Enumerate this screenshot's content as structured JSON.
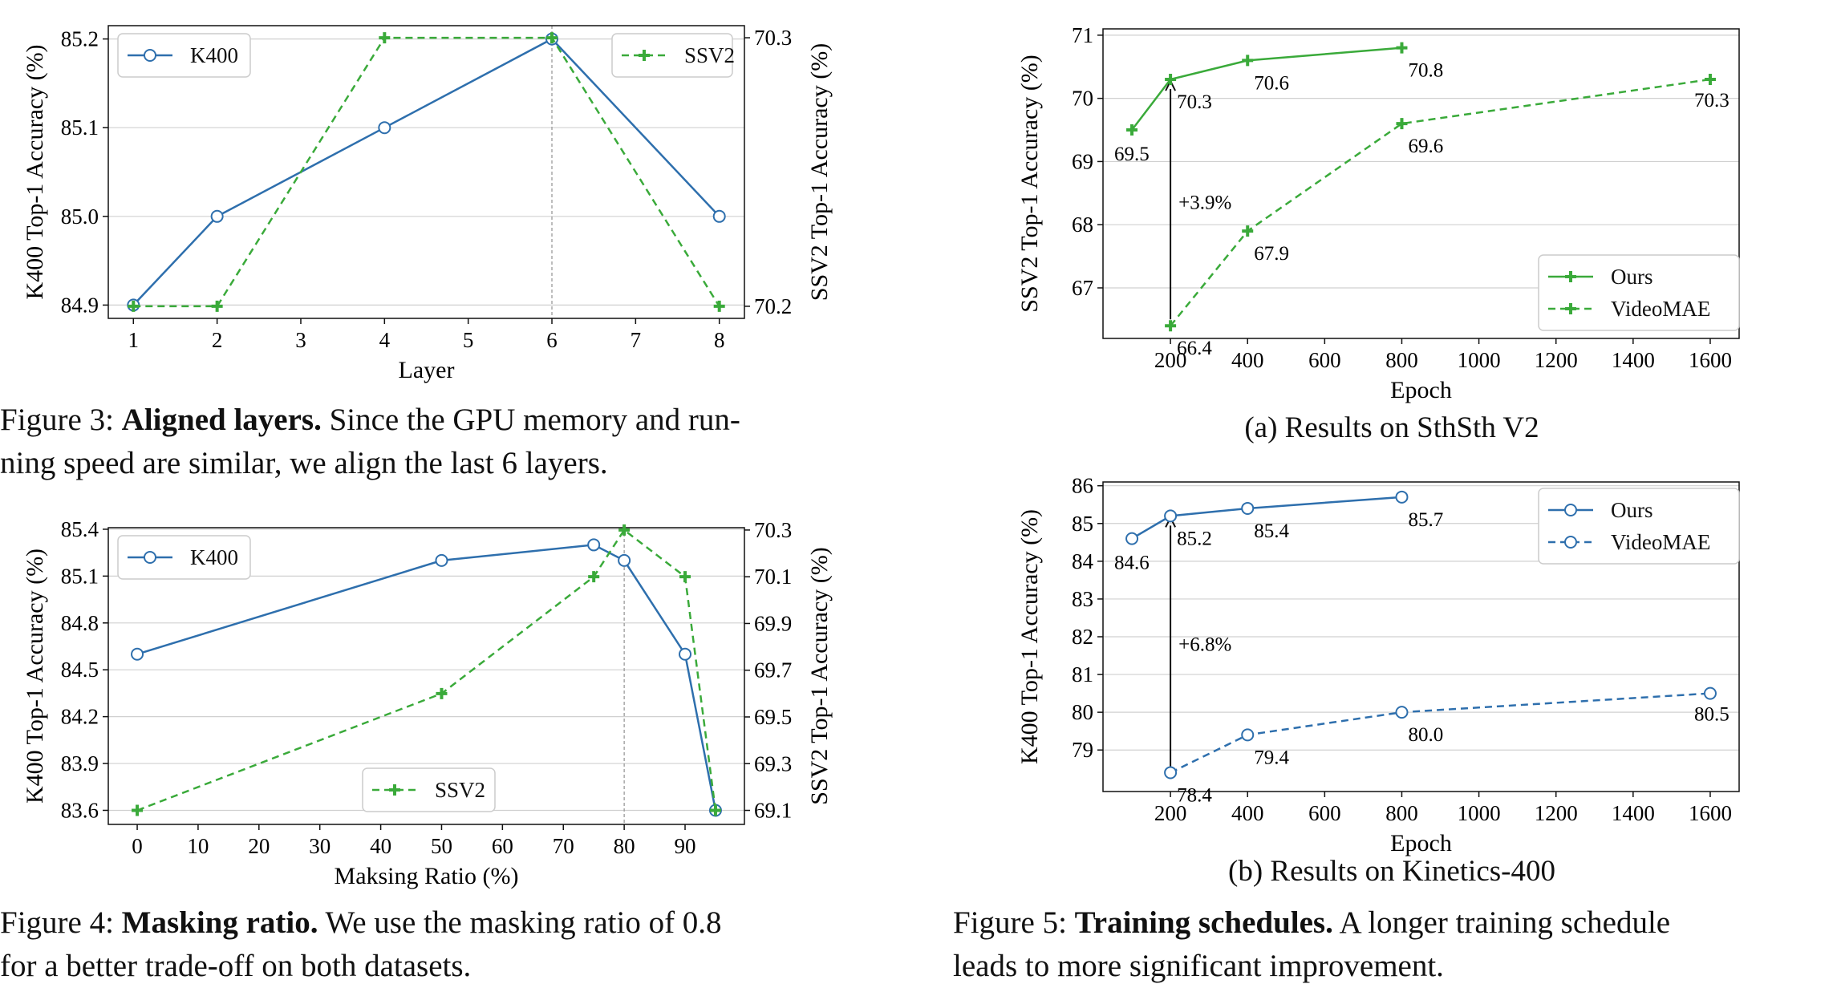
{
  "chart_data": [
    {
      "id": "fig3",
      "type": "line",
      "xlabel": "Layer",
      "ylabel_left": "K400 Top-1 Accuracy (%)",
      "ylabel_right": "SSV2 Top-1 Accuracy (%)",
      "x_ticks": [
        "1",
        "2",
        "3",
        "4",
        "5",
        "6",
        "7",
        "8"
      ],
      "y_left_ticks": [
        "84.9",
        "85.0",
        "85.1",
        "85.2"
      ],
      "y_right_ticks": [
        "70.2",
        "70.3"
      ],
      "xlim": [
        0.7,
        8.3
      ],
      "ylim_left": [
        84.885,
        85.215
      ],
      "ylim_right": [
        70.1955,
        70.3045
      ],
      "vline_x": 6,
      "series": [
        {
          "name": "K400",
          "axis": "left",
          "style": "solid-circle",
          "color": "#2e6fad",
          "x": [
            1,
            2,
            4,
            6,
            8
          ],
          "y": [
            84.9,
            85.0,
            85.1,
            85.2,
            85.0
          ]
        },
        {
          "name": "SSV2",
          "axis": "right",
          "style": "dashed-plus",
          "color": "#3aaa3a",
          "x": [
            1,
            2,
            4,
            6,
            8
          ],
          "y": [
            70.2,
            70.2,
            70.3,
            70.3,
            70.2
          ]
        }
      ],
      "legends": {
        "left": "top-left",
        "right": "top-right"
      }
    },
    {
      "id": "fig4",
      "type": "line",
      "xlabel": "Maksing Ratio (%)",
      "ylabel_left": "K400 Top-1 Accuracy (%)",
      "ylabel_right": "SSV2 Top-1 Accuracy (%)",
      "x_ticks": [
        "0",
        "10",
        "20",
        "30",
        "40",
        "50",
        "60",
        "70",
        "80",
        "90"
      ],
      "y_left_ticks": [
        "83.6",
        "83.9",
        "84.2",
        "84.5",
        "84.8",
        "85.1",
        "85.4"
      ],
      "y_right_ticks": [
        "69.1",
        "69.3",
        "69.5",
        "69.7",
        "69.9",
        "70.1",
        "70.3"
      ],
      "xlim": [
        -4.75,
        99.75
      ],
      "ylim_left": [
        83.51,
        85.41
      ],
      "ylim_right": [
        69.04,
        70.31
      ],
      "vline_x": 80,
      "series": [
        {
          "name": "K400",
          "axis": "left",
          "style": "solid-circle",
          "color": "#2e6fad",
          "x": [
            0,
            50,
            75,
            80,
            90,
            95
          ],
          "y": [
            84.6,
            85.2,
            85.3,
            85.2,
            84.6,
            83.6
          ]
        },
        {
          "name": "SSV2",
          "axis": "right",
          "style": "dashed-plus",
          "color": "#3aaa3a",
          "x": [
            0,
            50,
            75,
            80,
            90,
            95
          ],
          "y": [
            69.1,
            69.6,
            70.1,
            70.3,
            70.1,
            69.1
          ]
        }
      ],
      "legends": {
        "left": "top-left",
        "right": "bottom-center"
      }
    },
    {
      "id": "fig5a",
      "type": "line",
      "xlabel": "Epoch",
      "ylabel": "SSV2 Top-1 Accuracy (%)",
      "x_ticks": [
        "200",
        "400",
        "600",
        "800",
        "1000",
        "1200",
        "1400",
        "1600"
      ],
      "y_ticks": [
        "67",
        "68",
        "69",
        "70",
        "71"
      ],
      "xlim": [
        25,
        1675
      ],
      "ylim": [
        66.2,
        71.1
      ],
      "series": [
        {
          "name": "Ours",
          "style": "solid-plus",
          "color": "#3aaa3a",
          "x": [
            100,
            200,
            400,
            800
          ],
          "y": [
            69.5,
            70.3,
            70.6,
            70.8
          ],
          "labels": [
            "69.5",
            "70.3",
            "70.6",
            "70.8"
          ]
        },
        {
          "name": "VideoMAE",
          "style": "dashed-plus",
          "color": "#3aaa3a",
          "x": [
            200,
            400,
            800,
            1600
          ],
          "y": [
            66.4,
            67.9,
            69.6,
            70.3
          ],
          "labels": [
            "66.4",
            "67.9",
            "69.6",
            "70.3"
          ]
        }
      ],
      "annotation": {
        "text": "+3.9%",
        "x": 200,
        "y_from": 66.4,
        "y_to": 70.3
      },
      "legend": "bottom-right"
    },
    {
      "id": "fig5b",
      "type": "line",
      "xlabel": "Epoch",
      "ylabel": "K400 Top-1 Accuracy (%)",
      "x_ticks": [
        "200",
        "400",
        "600",
        "800",
        "1000",
        "1200",
        "1400",
        "1600"
      ],
      "y_ticks": [
        "79",
        "80",
        "81",
        "82",
        "83",
        "84",
        "85",
        "86"
      ],
      "xlim": [
        25,
        1675
      ],
      "ylim": [
        77.9,
        86.1
      ],
      "series": [
        {
          "name": "Ours",
          "style": "solid-circle",
          "color": "#2e6fad",
          "x": [
            100,
            200,
            400,
            800
          ],
          "y": [
            84.6,
            85.2,
            85.4,
            85.7
          ],
          "labels": [
            "84.6",
            "85.2",
            "85.4",
            "85.7"
          ]
        },
        {
          "name": "VideoMAE",
          "style": "dashed-circle",
          "color": "#2e6fad",
          "x": [
            200,
            400,
            800,
            1600
          ],
          "y": [
            78.4,
            79.4,
            80.0,
            80.5
          ],
          "labels": [
            "78.4",
            "79.4",
            "80.0",
            "80.5"
          ]
        }
      ],
      "annotation": {
        "text": "+6.8%",
        "x": 200,
        "y_from": 78.4,
        "y_to": 85.2
      },
      "legend": "top-right"
    }
  ],
  "captions": {
    "fig3": {
      "prefix": "Figure 3: ",
      "title": "Aligned layers.",
      "line1": " Since the GPU memory and run-",
      "line2": "ning speed are similar, we align the last 6 layers."
    },
    "fig4": {
      "prefix": "Figure 4: ",
      "title": "Masking ratio.",
      "line1": " We use the masking ratio of 0.8",
      "line2": "for a better trade-off on both datasets."
    },
    "fig5": {
      "prefix": "Figure 5: ",
      "title": "Training schedules.",
      "line1": " A longer training schedule",
      "line2": "leads to more significant improvement."
    },
    "fig5a_sub": "(a) Results on SthSth V2",
    "fig5b_sub": "(b) Results on Kinetics-400"
  }
}
